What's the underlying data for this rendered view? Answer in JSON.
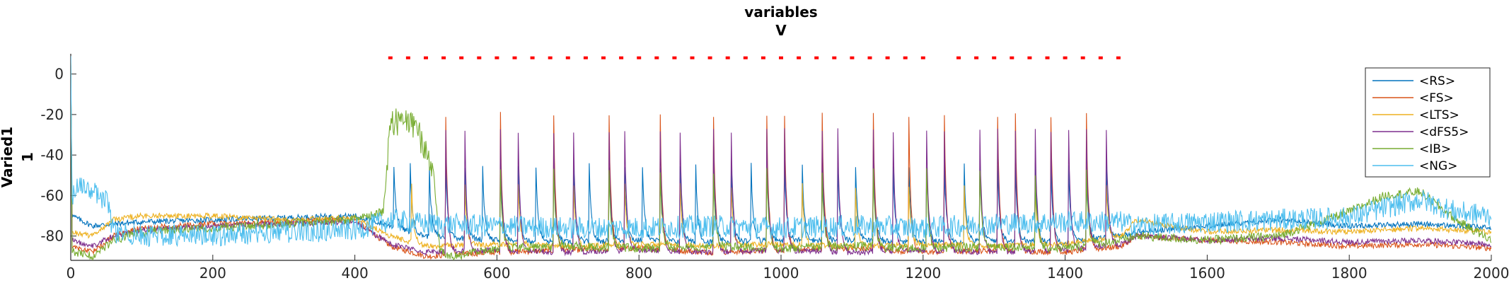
{
  "chart_data": {
    "type": "line",
    "title": "variables",
    "subtitle": "V",
    "xlabel": "",
    "ylabel": "Varied1",
    "ylabel2": "1",
    "xlim": [
      0,
      2000
    ],
    "ylim": [
      -92,
      10
    ],
    "xticks": [
      0,
      200,
      400,
      600,
      800,
      1000,
      1200,
      1400,
      1600,
      1800,
      2000
    ],
    "yticks": [
      0,
      -20,
      -40,
      -60,
      -80
    ],
    "grid": false,
    "legend_position": "top-right",
    "stimulus_markers": {
      "color": "#ff0000",
      "y": 8,
      "x_start": 450,
      "x_end": 1480,
      "x_gap": [
        1210,
        1240
      ],
      "step": 25
    },
    "series": [
      {
        "name": "<RS>",
        "color": "#0072bd",
        "x": [
          0,
          2,
          30,
          60,
          100,
          200,
          300,
          400,
          450,
          500,
          600,
          700,
          800,
          900,
          1000,
          1100,
          1200,
          1300,
          1400,
          1480,
          1500,
          1600,
          1700,
          1800,
          1900,
          2000
        ],
        "y": [
          5,
          -70,
          -75,
          -74,
          -73,
          -72,
          -71,
          -70,
          -75,
          -80,
          -82,
          -83,
          -82,
          -83,
          -82,
          -82,
          -83,
          -82,
          -83,
          -80,
          -78,
          -75,
          -72,
          -75,
          -74,
          -76
        ],
        "spikes_x": [
          455,
          478,
          505,
          528,
          555,
          580,
          605,
          630,
          655,
          680,
          708,
          730,
          758,
          780,
          805,
          830,
          858,
          880,
          905,
          930,
          958,
          980,
          1005,
          1030,
          1058,
          1080,
          1105,
          1130,
          1158,
          1180,
          1205,
          1230,
          1258,
          1280,
          1305,
          1330,
          1358,
          1380,
          1405,
          1430,
          1458
        ],
        "spike_peak": -45
      },
      {
        "name": "<FS>",
        "color": "#d95319",
        "x": [
          0,
          2,
          30,
          60,
          100,
          200,
          300,
          400,
          450,
          500,
          600,
          700,
          800,
          900,
          1000,
          1100,
          1200,
          1300,
          1400,
          1480,
          1500,
          1600,
          1700,
          1800,
          1900,
          2000
        ],
        "y": [
          5,
          -85,
          -88,
          -80,
          -76,
          -74,
          -73,
          -72,
          -85,
          -90,
          -88,
          -87,
          -86,
          -88,
          -87,
          -86,
          -88,
          -87,
          -88,
          -85,
          -80,
          -82,
          -83,
          -85,
          -84,
          -86
        ],
        "spikes_x": [
          528,
          605,
          680,
          758,
          830,
          905,
          980,
          1005,
          1058,
          1130,
          1180,
          1230,
          1305,
          1330,
          1380,
          1430
        ],
        "spike_peak": -20
      },
      {
        "name": "<LTS>",
        "color": "#edb120",
        "x": [
          0,
          2,
          30,
          60,
          100,
          200,
          300,
          400,
          450,
          500,
          600,
          700,
          800,
          900,
          1000,
          1100,
          1200,
          1300,
          1400,
          1480,
          1500,
          1600,
          1700,
          1800,
          1900,
          2000
        ],
        "y": [
          5,
          -78,
          -80,
          -72,
          -70,
          -70,
          -72,
          -71,
          -80,
          -85,
          -84,
          -85,
          -84,
          -85,
          -84,
          -85,
          -84,
          -85,
          -84,
          -80,
          -72,
          -78,
          -77,
          -78,
          -76,
          -78
        ],
        "spikes_x": [
          480,
          555,
          630,
          708,
          780,
          858,
          930,
          1030,
          1105,
          1180,
          1258,
          1358,
          1458
        ],
        "spike_peak": -55
      },
      {
        "name": "<dFS5>",
        "color": "#7e2f8e",
        "x": [
          0,
          2,
          30,
          60,
          100,
          200,
          300,
          400,
          450,
          500,
          600,
          700,
          800,
          900,
          1000,
          1100,
          1200,
          1300,
          1400,
          1480,
          1500,
          1600,
          1700,
          1800,
          1900,
          2000
        ],
        "y": [
          5,
          -82,
          -85,
          -80,
          -77,
          -75,
          -74,
          -73,
          -84,
          -88,
          -87,
          -88,
          -87,
          -88,
          -87,
          -88,
          -87,
          -88,
          -87,
          -84,
          -80,
          -82,
          -81,
          -83,
          -82,
          -84
        ],
        "spikes_x": [
          528,
          555,
          605,
          630,
          680,
          708,
          758,
          780,
          830,
          858,
          905,
          930,
          980,
          1005,
          1058,
          1080,
          1130,
          1158,
          1205,
          1230,
          1280,
          1305,
          1330,
          1358,
          1380,
          1405,
          1430,
          1458
        ],
        "spike_peak": -28
      },
      {
        "name": "<IB>",
        "color": "#77ac30",
        "x": [
          0,
          2,
          30,
          60,
          100,
          200,
          300,
          400,
          440,
          450,
          470,
          490,
          510,
          520,
          540,
          600,
          700,
          800,
          900,
          1000,
          1100,
          1200,
          1300,
          1400,
          1480,
          1500,
          1600,
          1700,
          1800,
          1850,
          1900,
          1950,
          2000
        ],
        "y": [
          5,
          -88,
          -90,
          -82,
          -78,
          -76,
          -74,
          -72,
          -68,
          -25,
          -22,
          -30,
          -45,
          -88,
          -90,
          -86,
          -85,
          -86,
          -85,
          -86,
          -85,
          -86,
          -85,
          -86,
          -82,
          -80,
          -82,
          -80,
          -68,
          -60,
          -58,
          -72,
          -82
        ],
        "spikes_x": [
          605,
          680,
          758,
          830,
          905,
          980,
          1058,
          1130,
          1205,
          1280,
          1358,
          1430
        ],
        "spike_peak": -48
      },
      {
        "name": "<NG>",
        "color": "#4dbeee",
        "x": [
          0,
          2,
          10,
          30,
          50,
          60,
          100,
          200,
          300,
          400,
          450,
          500,
          600,
          700,
          800,
          900,
          1000,
          1100,
          1200,
          1300,
          1400,
          1480,
          1500,
          1600,
          1700,
          1800,
          1850,
          1900,
          1950,
          2000
        ],
        "y": [
          5,
          -60,
          -55,
          -58,
          -62,
          -78,
          -80,
          -80,
          -78,
          -77,
          -72,
          -74,
          -75,
          -76,
          -76,
          -75,
          -76,
          -75,
          -76,
          -74,
          -73,
          -73,
          -75,
          -73,
          -72,
          -71,
          -66,
          -62,
          -68,
          -70
        ],
        "spikes_x": [],
        "spike_peak": -60
      }
    ]
  }
}
